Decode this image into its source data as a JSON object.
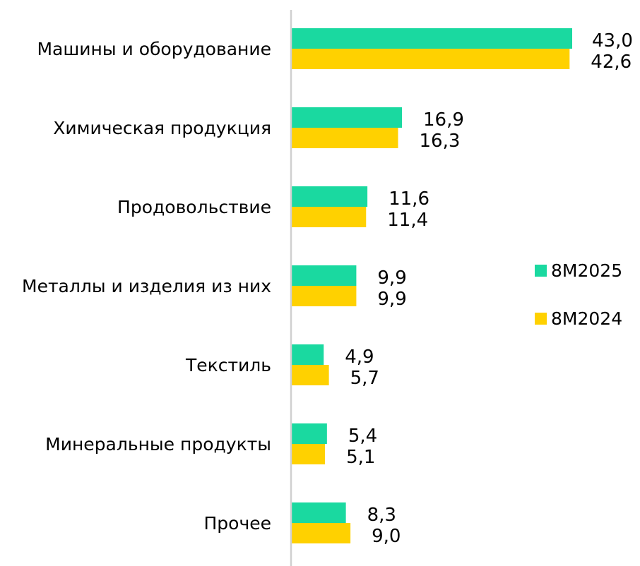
{
  "chart_data": {
    "type": "bar",
    "orientation": "horizontal",
    "categories": [
      "Машины и оборудование",
      "Химическая продукция",
      "Продовольствие",
      "Металлы и изделия из них",
      "Текстиль",
      "Минеральные продукты",
      "Прочее"
    ],
    "series": [
      {
        "name": "8M2025",
        "color": "#1ad9a0",
        "values": [
          43.0,
          16.9,
          11.6,
          9.9,
          4.9,
          5.4,
          8.3
        ],
        "labels": [
          "43,0",
          "16,9",
          "11,6",
          "9,9",
          "4,9",
          "5,4",
          "8,3"
        ]
      },
      {
        "name": "8M2024",
        "color": "#ffd100",
        "values": [
          42.6,
          16.3,
          11.4,
          9.9,
          5.7,
          5.1,
          9.0
        ],
        "labels": [
          "42,6",
          "16,3",
          "11,4",
          "9,9",
          "5,7",
          "5,1",
          "9,0"
        ]
      }
    ],
    "xlim": [
      0,
      43.0
    ],
    "grid": false,
    "legend_position": "right",
    "axis_color": "#d0d0d0"
  }
}
